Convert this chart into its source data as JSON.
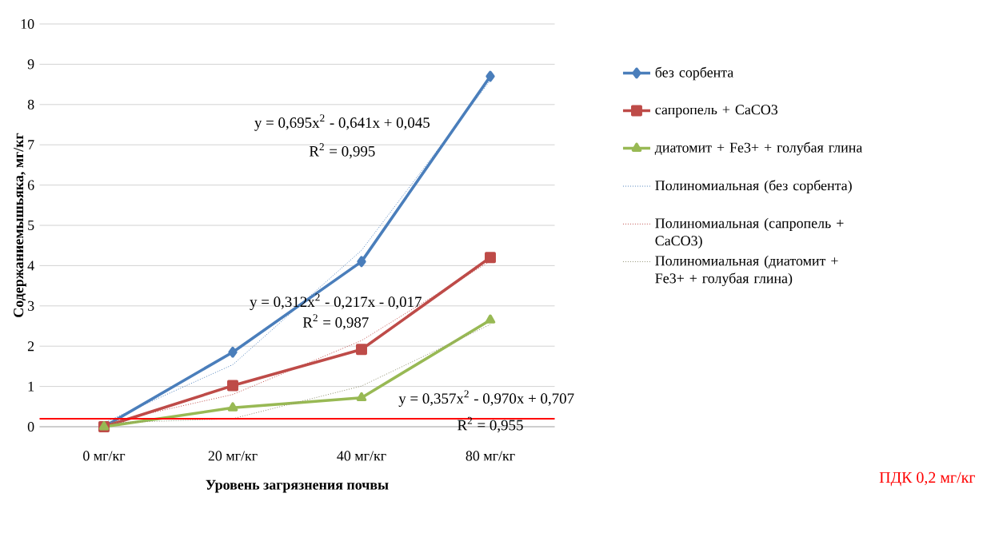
{
  "chart_data": {
    "type": "line",
    "xlabel": "Уровень загрязнения почвы",
    "ylabel": "Содержаниемышьяка, мг/кг",
    "categories": [
      "0 мг/кг",
      "20 мг/кг",
      "40 мг/кг",
      "80 мг/кг"
    ],
    "ylim": [
      0,
      10
    ],
    "yticks": [
      0,
      1,
      2,
      3,
      4,
      5,
      6,
      7,
      8,
      9,
      10
    ],
    "grid": "y",
    "legend": "right",
    "series": [
      {
        "name": "без сорбента",
        "color": "#4a7ebb",
        "values": [
          0,
          1.85,
          4.1,
          8.7
        ],
        "marker": "diamond",
        "line_style": "solid"
      },
      {
        "name": "сапропель + CaCO3",
        "color": "#be4b48",
        "values": [
          0,
          1.02,
          1.92,
          4.2
        ],
        "marker": "square",
        "line_style": "solid"
      },
      {
        "name": "диатомит + Fe3+ + голубая глина",
        "color": "#98b954",
        "values": [
          0,
          0.47,
          0.72,
          2.65
        ],
        "marker": "triangle",
        "line_style": "solid"
      },
      {
        "name": "Полиномиальная (без сорбента)",
        "color": "#4a7ebb",
        "values": [
          0.1,
          1.54,
          4.38,
          8.6
        ],
        "marker": "none",
        "line_style": "dotted"
      },
      {
        "name": "Полиномиальная (сапропель + CaCO3)",
        "color": "#be4b48",
        "values": [
          0.08,
          0.8,
          2.14,
          4.11
        ],
        "marker": "none",
        "line_style": "dotted"
      },
      {
        "name": "Полиномиальная (диатомит + Fe3+ + голубая глина)",
        "color": "#8c8c6c",
        "values": [
          0.09,
          0.2,
          1.01,
          2.54
        ],
        "marker": "none",
        "line_style": "dotted"
      }
    ],
    "ref_lines": [
      {
        "axis": "y",
        "value": 0.2,
        "label": "ПДК 0,2 мг/кг",
        "color": "#ff0000"
      }
    ],
    "annotations": [
      "y = 0,695x$^{2}$ - 0,641x + 0,045",
      "R$^{2}$ = 0,995",
      "y = 0,312x$^{2}$ - 0,217x - 0,017",
      "R$^{2}$ = 0,987",
      "y = 0,357x$^{2}$ - 0,970x + 0,707",
      "R$^{2}$ = 0,955"
    ]
  }
}
